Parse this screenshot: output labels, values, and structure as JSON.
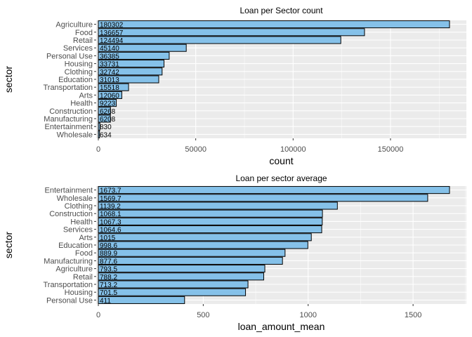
{
  "chart_data": [
    {
      "type": "bar",
      "orientation": "horizontal",
      "title": "Loan per Sector count",
      "xlabel": "count",
      "ylabel": "sector",
      "xlim": [
        0,
        180302
      ],
      "xticks": [
        0,
        50000,
        100000,
        150000
      ],
      "grid": true,
      "bar_color": "#85C1E9",
      "categories": [
        "Agriculture",
        "Food",
        "Retail",
        "Services",
        "Personal Use",
        "Housing",
        "Clothing",
        "Education",
        "Transportation",
        "Arts",
        "Health",
        "Construction",
        "Manufacturing",
        "Entertainment",
        "Wholesale"
      ],
      "values": [
        180302,
        136657,
        124494,
        45140,
        36385,
        33731,
        32742,
        31013,
        15518,
        12060,
        9223,
        6268,
        6208,
        830,
        634
      ],
      "value_labels": [
        "180302",
        "136657",
        "124494",
        "45140",
        "36385",
        "33731",
        "32742",
        "31013",
        "15518",
        "12060",
        "9223",
        "6268",
        "6208",
        "830",
        "634"
      ]
    },
    {
      "type": "bar",
      "orientation": "horizontal",
      "title": "Loan per sector average",
      "xlabel": "loan_amount_mean",
      "ylabel": "sector",
      "xlim": [
        0,
        1673.7
      ],
      "xticks": [
        0,
        500,
        1000,
        1500
      ],
      "grid": true,
      "bar_color": "#85C1E9",
      "categories": [
        "Entertainment",
        "Wholesale",
        "Clothing",
        "Construction",
        "Health",
        "Services",
        "Arts",
        "Education",
        "Food",
        "Manufacturing",
        "Agriculture",
        "Retail",
        "Transportation",
        "Housing",
        "Personal Use"
      ],
      "values": [
        1673.7,
        1569.7,
        1139.2,
        1068.1,
        1067.3,
        1064.6,
        1015,
        998.6,
        889.9,
        877.6,
        793.5,
        788.2,
        713.2,
        701.5,
        411
      ],
      "value_labels": [
        "1673.7",
        "1569.7",
        "1139.2",
        "1068.1",
        "1067.3",
        "1064.6",
        "1015",
        "998.6",
        "889.9",
        "877.6",
        "793.5",
        "788.2",
        "713.2",
        "701.5",
        "411"
      ]
    }
  ]
}
